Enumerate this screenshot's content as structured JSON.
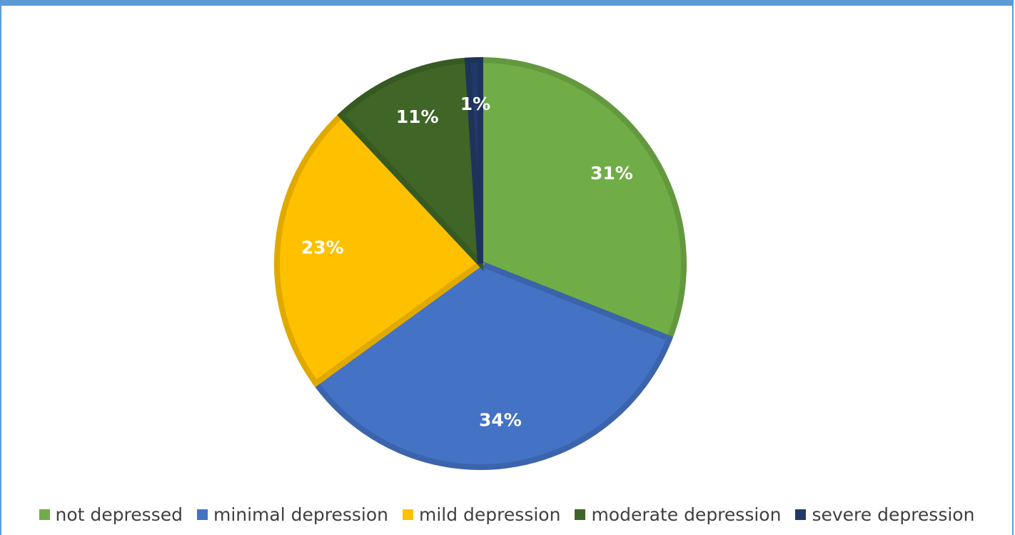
{
  "chart_data": {
    "type": "pie",
    "title": "",
    "categories": [
      "not depressed",
      "minimal depression",
      "mild depression",
      "moderate  depression",
      "severe depression"
    ],
    "values": [
      31,
      34,
      23,
      11,
      1
    ],
    "labels": [
      "31%",
      "34%",
      "23%",
      "11%",
      "1%"
    ],
    "colors": [
      "#70ad47",
      "#4472c4",
      "#ffc000",
      "#3f6527",
      "#223a68"
    ],
    "start_angle": "12 o'clock, clockwise",
    "legend_position": "bottom"
  },
  "legend": {
    "items": [
      {
        "label": "not depressed",
        "color": "#70ad47"
      },
      {
        "label": "minimal depression",
        "color": "#4472c4"
      },
      {
        "label": "mild depression",
        "color": "#ffc000"
      },
      {
        "label": "moderate  depression",
        "color": "#3f6527"
      },
      {
        "label": "severe depression",
        "color": "#223a68"
      }
    ]
  }
}
